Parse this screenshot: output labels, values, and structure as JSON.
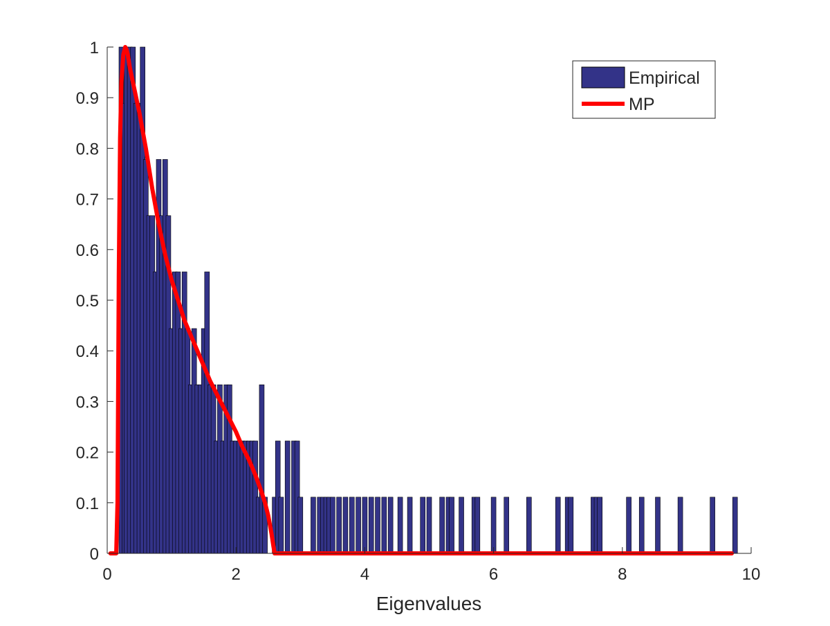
{
  "chart_data": {
    "type": "bar",
    "xlabel": "Eigenvalues",
    "ylabel": "",
    "title": "",
    "xlim": [
      0,
      10
    ],
    "ylim": [
      0,
      1
    ],
    "xticks": [
      "0",
      "2",
      "4",
      "6",
      "8",
      "10"
    ],
    "yticks": [
      "0",
      "0.1",
      "0.2",
      "0.3",
      "0.4",
      "0.5",
      "0.6",
      "0.7",
      "0.8",
      "0.9",
      "1"
    ],
    "legend_position": "top-right",
    "grid": false,
    "bar_width": 0.075,
    "bar_color": "#333388",
    "line_color": "#ff0000",
    "series": [
      {
        "name": "Empirical",
        "kind": "bar",
        "x": [
          0.22,
          0.27,
          0.3,
          0.35,
          0.4,
          0.45,
          0.5,
          0.55,
          0.6,
          0.65,
          0.7,
          0.75,
          0.8,
          0.85,
          0.9,
          0.95,
          1.0,
          1.05,
          1.1,
          1.15,
          1.2,
          1.25,
          1.3,
          1.35,
          1.4,
          1.45,
          1.5,
          1.55,
          1.6,
          1.65,
          1.7,
          1.75,
          1.8,
          1.85,
          1.9,
          1.95,
          2.0,
          2.05,
          2.1,
          2.15,
          2.2,
          2.25,
          2.3,
          2.35,
          2.4,
          2.45,
          2.6,
          2.65,
          2.7,
          2.8,
          2.9,
          2.95,
          3.0,
          3.2,
          3.3,
          3.35,
          3.4,
          3.45,
          3.5,
          3.6,
          3.7,
          3.8,
          3.9,
          4.0,
          4.1,
          4.2,
          4.3,
          4.4,
          4.55,
          4.7,
          4.9,
          5.0,
          5.2,
          5.3,
          5.35,
          5.5,
          5.7,
          5.75,
          6.0,
          6.2,
          6.55,
          7.0,
          7.15,
          7.2,
          7.55,
          7.6,
          7.65,
          8.1,
          8.3,
          8.55,
          8.9,
          9.4,
          9.75
        ],
        "values": [
          1.0,
          0.889,
          1.0,
          1.0,
          1.0,
          0.889,
          0.889,
          1.0,
          0.778,
          0.667,
          0.667,
          0.556,
          0.778,
          0.667,
          0.778,
          0.667,
          0.444,
          0.556,
          0.556,
          0.444,
          0.556,
          0.444,
          0.333,
          0.444,
          0.333,
          0.333,
          0.444,
          0.556,
          0.333,
          0.333,
          0.222,
          0.333,
          0.222,
          0.333,
          0.333,
          0.222,
          0.222,
          0.222,
          0.222,
          0.222,
          0.222,
          0.222,
          0.222,
          0.111,
          0.333,
          0.111,
          0.111,
          0.222,
          0.111,
          0.222,
          0.222,
          0.222,
          0.111,
          0.111,
          0.111,
          0.111,
          0.111,
          0.111,
          0.111,
          0.111,
          0.111,
          0.111,
          0.111,
          0.111,
          0.111,
          0.111,
          0.111,
          0.111,
          0.111,
          0.111,
          0.111,
          0.111,
          0.111,
          0.111,
          0.111,
          0.111,
          0.111,
          0.111,
          0.111,
          0.111,
          0.111,
          0.111,
          0.111,
          0.111,
          0.111,
          0.111,
          0.111,
          0.111,
          0.111,
          0.111,
          0.111,
          0.111,
          0.111
        ]
      },
      {
        "name": "MP",
        "kind": "line",
        "x": [
          0.05,
          0.14,
          0.16,
          0.18,
          0.2,
          0.22,
          0.25,
          0.28,
          0.3,
          0.32,
          0.35,
          0.4,
          0.5,
          0.6,
          0.7,
          0.8,
          0.9,
          1.0,
          1.1,
          1.2,
          1.3,
          1.4,
          1.5,
          1.6,
          1.7,
          1.8,
          1.9,
          2.0,
          2.1,
          2.2,
          2.3,
          2.4,
          2.45,
          2.5,
          2.55,
          2.58,
          2.6,
          3.0,
          4.0,
          5.0,
          6.0,
          7.0,
          8.0,
          9.0,
          9.7
        ],
        "values": [
          0,
          0,
          0.1,
          0.55,
          0.82,
          0.93,
          0.985,
          1.0,
          0.995,
          0.985,
          0.96,
          0.93,
          0.87,
          0.8,
          0.72,
          0.65,
          0.59,
          0.54,
          0.5,
          0.46,
          0.43,
          0.4,
          0.37,
          0.34,
          0.315,
          0.29,
          0.265,
          0.24,
          0.21,
          0.185,
          0.155,
          0.12,
          0.1,
          0.075,
          0.04,
          0.015,
          0,
          0,
          0,
          0,
          0,
          0,
          0,
          0,
          0
        ]
      }
    ]
  }
}
